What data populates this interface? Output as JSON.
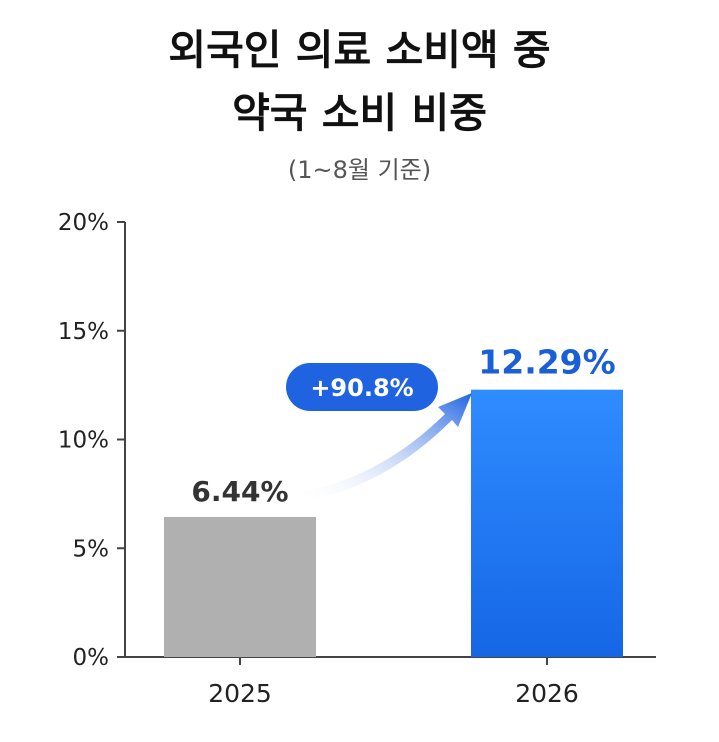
{
  "title_lines": [
    "외국인 의료 소비액 중",
    "약국 소비 비중"
  ],
  "subtitle": "(1~8월 기준)",
  "colors": {
    "bar_2025": "#b0b0b0",
    "bar_2026_top": "#2f8cff",
    "bar_2026_bottom": "#1666e6",
    "label_2025": "#333333",
    "label_2026": "#1a5fd6",
    "badge": "#1f63e0",
    "axis": "#444444"
  },
  "change_badge": "+90.8%",
  "chart_data": {
    "type": "bar",
    "categories": [
      "2025",
      "2026"
    ],
    "values": [
      6.44,
      12.29
    ],
    "value_labels": [
      "6.44%",
      "12.29%"
    ],
    "ylim": [
      0,
      20
    ],
    "yticks": [
      0,
      5,
      10,
      15,
      20
    ],
    "ytick_labels": [
      "0%",
      "5%",
      "10%",
      "15%",
      "20%"
    ],
    "grid": false,
    "annotation": "+90.8%"
  }
}
